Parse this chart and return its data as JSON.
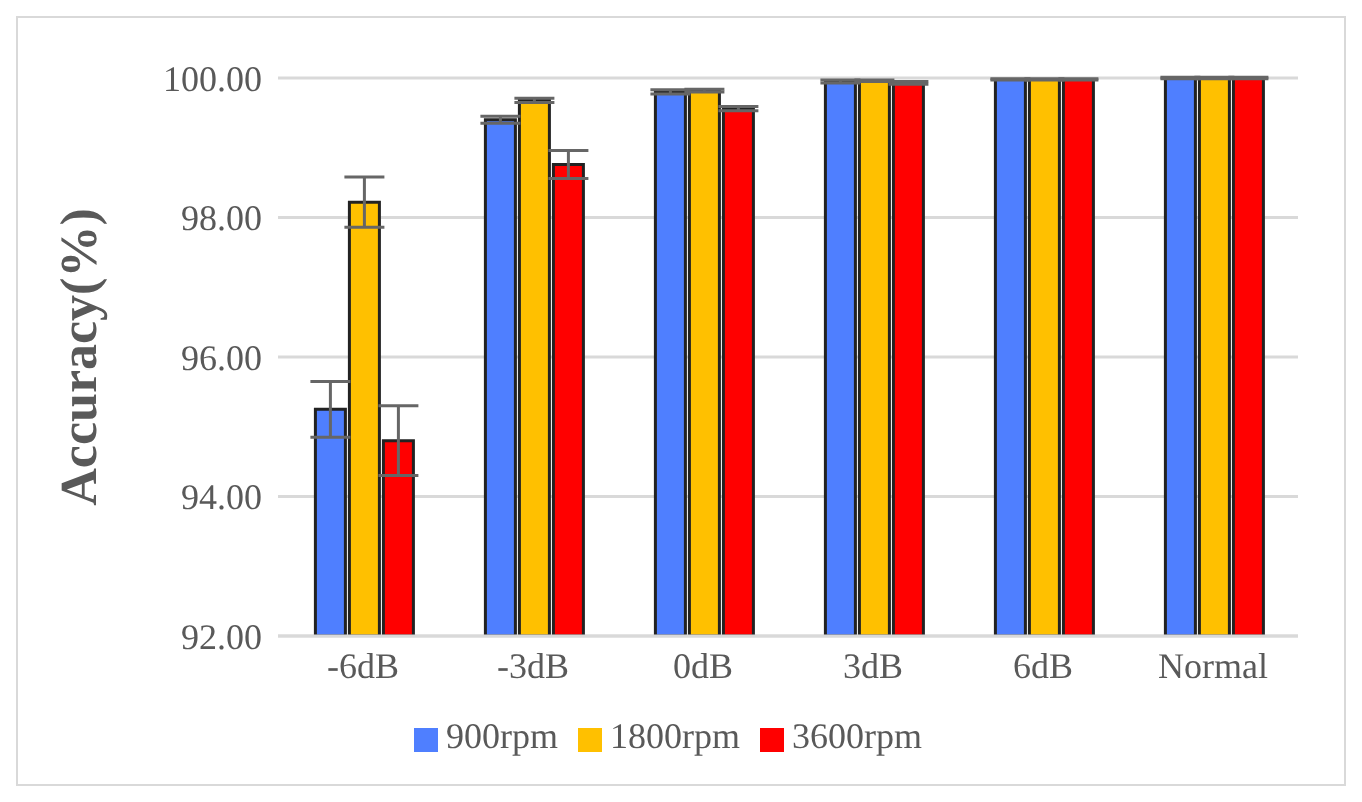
{
  "chart_data": {
    "type": "bar",
    "ylabel": "Accuracy(%)",
    "categories": [
      "-6dB",
      "-3dB",
      "0dB",
      "3dB",
      "6dB",
      "Normal"
    ],
    "series": [
      {
        "name": "900rpm",
        "color": "#4f7fff",
        "values": [
          95.25,
          99.4,
          99.8,
          99.95,
          99.98,
          100
        ],
        "errors": [
          0.4,
          0.05,
          0.03,
          0.02,
          0.01,
          0.01
        ]
      },
      {
        "name": "1800rpm",
        "color": "#ffc000",
        "values": [
          98.22,
          99.68,
          99.82,
          99.96,
          99.98,
          100
        ],
        "errors": [
          0.36,
          0.03,
          0.02,
          0.01,
          0.01,
          0.01
        ]
      },
      {
        "name": "3600rpm",
        "color": "#ff0000",
        "values": [
          94.8,
          98.76,
          99.56,
          99.93,
          99.98,
          100
        ],
        "errors": [
          0.5,
          0.2,
          0.03,
          0.02,
          0.01,
          0.01
        ]
      }
    ],
    "ylim": [
      92,
      100
    ],
    "yticks": [
      {
        "value": 92,
        "label": "92.00"
      },
      {
        "value": 94,
        "label": "94.00"
      },
      {
        "value": 96,
        "label": "96.00"
      },
      {
        "value": 98,
        "label": "98.00"
      },
      {
        "value": 100,
        "label": "100.00"
      }
    ],
    "grid": "y",
    "legend": "bottom"
  }
}
